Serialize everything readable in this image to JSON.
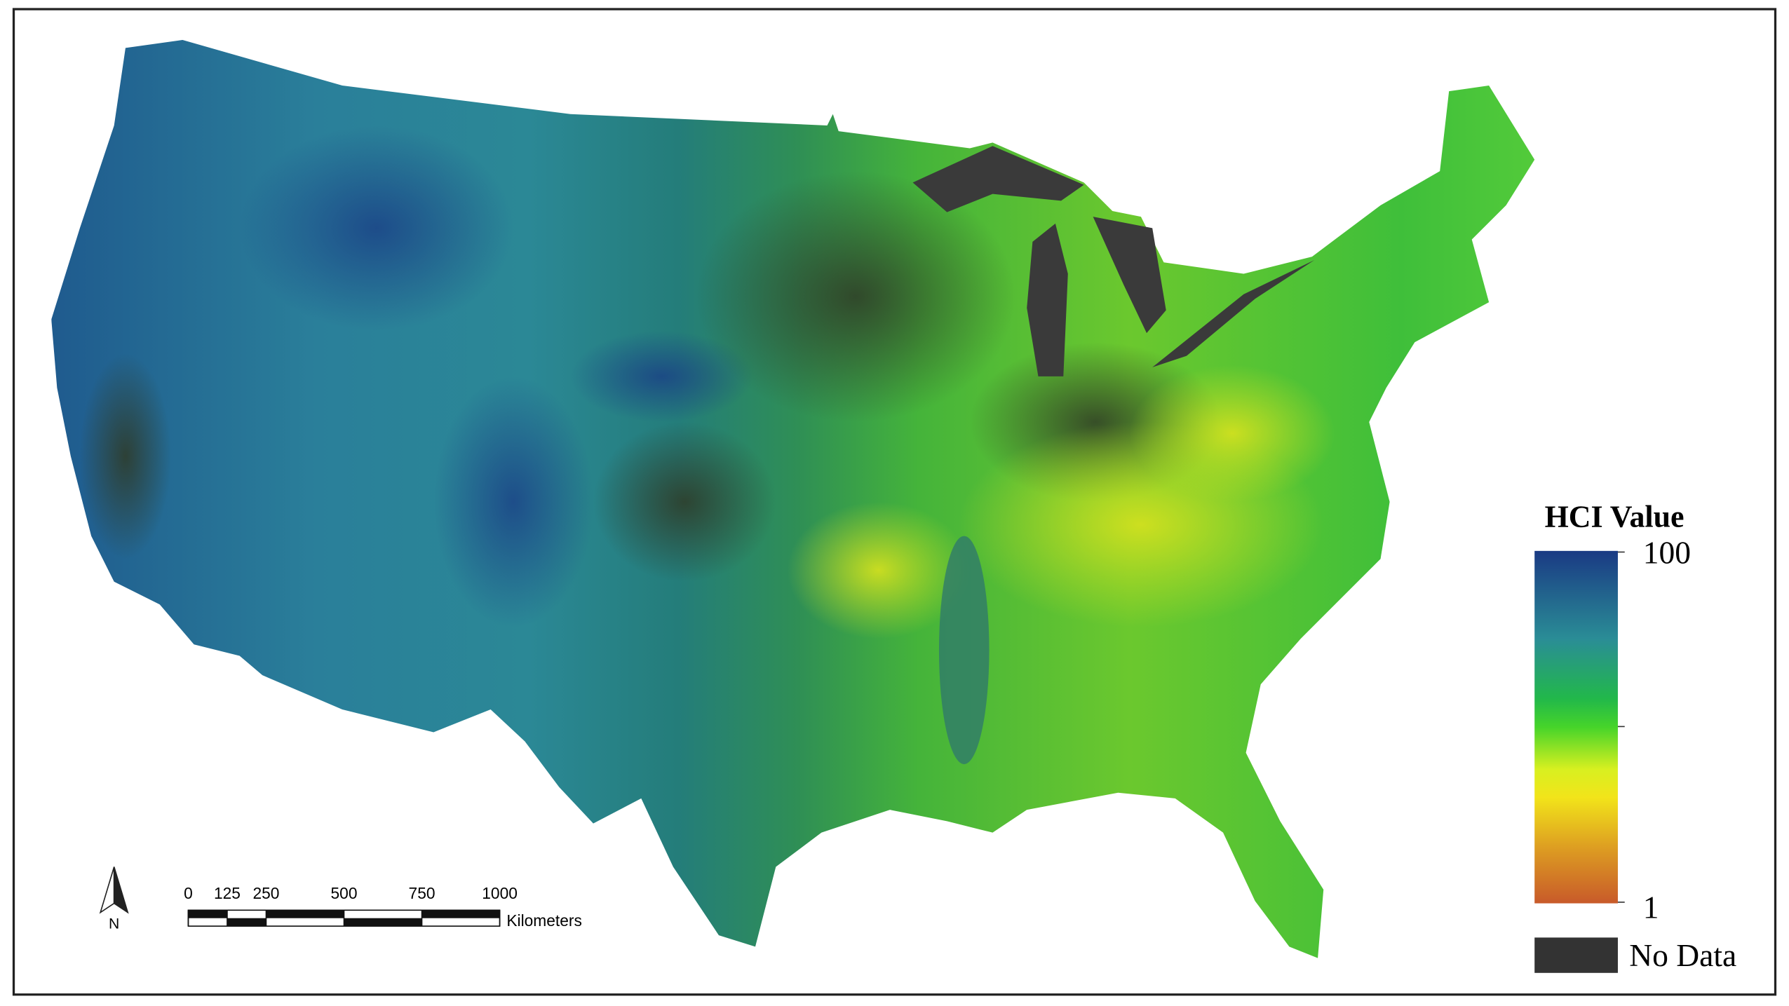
{
  "legend": {
    "title": "HCI Value",
    "max": 100,
    "min": 1,
    "no_data": "No Data"
  },
  "scale_bar": {
    "ticks": [
      0,
      125,
      250,
      500,
      750,
      1000
    ],
    "unit": "Kilometers"
  },
  "north_arrow": "N"
}
